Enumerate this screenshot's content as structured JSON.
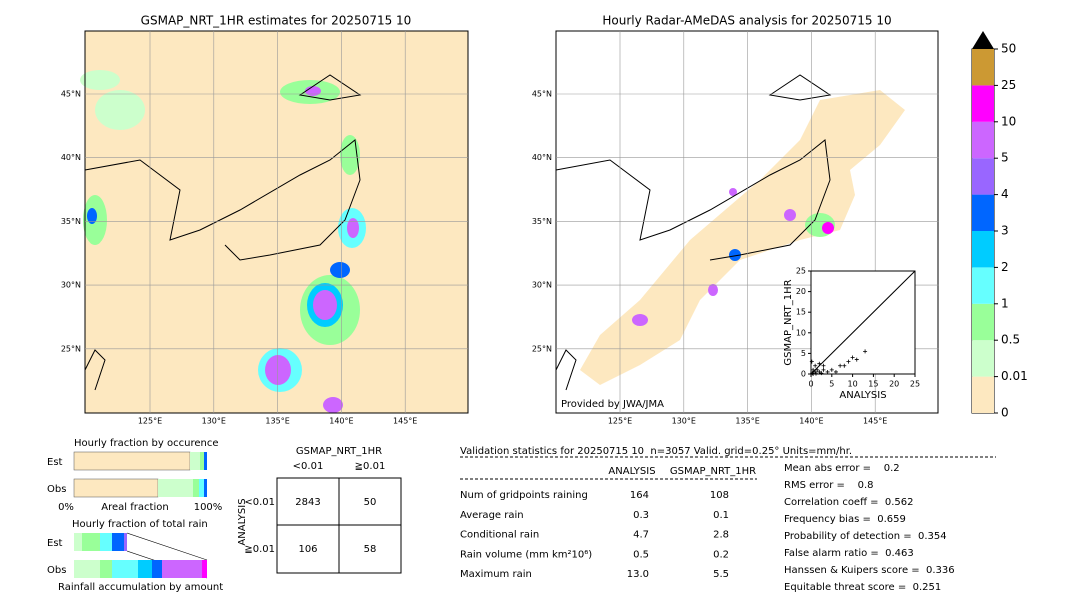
{
  "left_map": {
    "title": "GSMAP_NRT_1HR estimates for 20250715 10",
    "lat_labels": [
      "45°N",
      "40°N",
      "35°N",
      "30°N",
      "25°N"
    ],
    "lon_labels": [
      "125°E",
      "130°E",
      "135°E",
      "140°E",
      "145°E"
    ]
  },
  "right_map": {
    "title": "Hourly Radar-AMeDAS analysis for 20250715 10",
    "lat_labels": [
      "45°N",
      "40°N",
      "35°N",
      "30°N",
      "25°N"
    ],
    "lon_labels": [
      "125°E",
      "130°E",
      "135°E",
      "140°E",
      "145°E"
    ],
    "credit": "Provided by JWA/JMA",
    "inset": {
      "xlabel": "ANALYSIS",
      "ylabel": "GSMAP_NRT_1HR",
      "xlim": [
        0,
        25
      ],
      "ylim": [
        0,
        25
      ],
      "ticks": [
        0,
        5,
        10,
        15,
        20,
        25
      ],
      "points": [
        [
          0.3,
          0.2
        ],
        [
          0.5,
          1
        ],
        [
          1,
          0.5
        ],
        [
          1,
          2
        ],
        [
          1.5,
          1
        ],
        [
          2,
          0.5
        ],
        [
          2,
          2.5
        ],
        [
          3,
          1
        ],
        [
          3,
          2
        ],
        [
          4,
          0.5
        ],
        [
          0.2,
          3
        ],
        [
          5,
          1
        ],
        [
          6,
          0.5
        ],
        [
          7,
          2
        ],
        [
          8,
          2
        ],
        [
          9,
          3
        ],
        [
          10,
          4
        ],
        [
          11,
          3.5
        ],
        [
          0.5,
          0
        ],
        [
          1.2,
          0.1
        ],
        [
          2.5,
          0.2
        ],
        [
          13,
          5.5
        ]
      ]
    }
  },
  "colorbar": {
    "labels": [
      "0",
      "0.01",
      "0.5",
      "1",
      "2",
      "3",
      "4",
      "5",
      "10",
      "25",
      "50"
    ],
    "colors": [
      "#fde8c0",
      "#ccffcc",
      "#99ff99",
      "#66ffff",
      "#00ccff",
      "#0066ff",
      "#9966ff",
      "#cc66ff",
      "#ff00ff",
      "#cc9933"
    ]
  },
  "fraction_occurrence": {
    "title": "Hourly fraction by occurence",
    "rows": [
      "Est",
      "Obs"
    ],
    "axis_left": "0%",
    "axis_mid": "Areal fraction",
    "axis_right": "100%"
  },
  "fraction_total": {
    "title": "Hourly fraction of total rain",
    "rows": [
      "Est",
      "Obs"
    ],
    "caption": "Rainfall accumulation by amount"
  },
  "contingency": {
    "title": "GSMAP_NRT_1HR",
    "col_labels": [
      "<0.01",
      "≧0.01"
    ],
    "row_title": "ANALYSIS",
    "row_labels": [
      "<0.01",
      "≧0.01"
    ],
    "cells": [
      [
        "2843",
        "50"
      ],
      [
        "106",
        "58"
      ]
    ]
  },
  "validation": {
    "header": "Validation statistics for 20250715 10  n=3057 Valid. grid=0.25° Units=mm/hr.",
    "columns": [
      "ANALYSIS",
      "GSMAP_NRT_1HR"
    ],
    "rows": [
      {
        "label": "Num of gridpoints raining",
        "values": [
          "164",
          "108"
        ]
      },
      {
        "label": "Average rain",
        "values": [
          "0.3",
          "0.1"
        ]
      },
      {
        "label": "Conditional rain",
        "values": [
          "4.7",
          "2.8"
        ]
      },
      {
        "label": "Rain volume (mm km²10⁶)",
        "values": [
          "0.5",
          "0.2"
        ]
      },
      {
        "label": "Maximum rain",
        "values": [
          "13.0",
          "5.5"
        ]
      }
    ],
    "scores": [
      "Mean abs error =    0.2",
      "RMS error =    0.8",
      "Correlation coeff =  0.562",
      "Frequency bias =  0.659",
      "Probability of detection =  0.354",
      "False alarm ratio =  0.463",
      "Hanssen & Kuipers score =  0.336",
      "Equitable threat score =  0.251"
    ]
  }
}
